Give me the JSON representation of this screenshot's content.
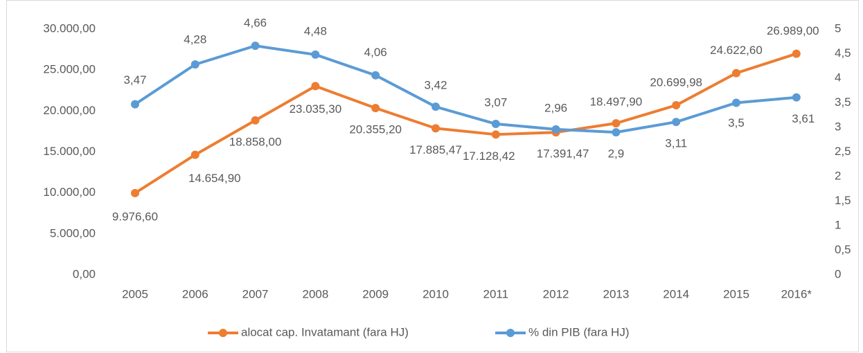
{
  "chart_data": {
    "type": "line",
    "categories": [
      "2005",
      "2006",
      "2007",
      "2008",
      "2009",
      "2010",
      "2011",
      "2012",
      "2013",
      "2014",
      "2015",
      "2016*"
    ],
    "series": [
      {
        "name": "alocat cap. Invatamant (fara HJ)",
        "color": "#ed7d31",
        "axis": "y",
        "values": [
          9976.6,
          14654.9,
          18858,
          23035.3,
          20355.2,
          17885.47,
          17128.42,
          17391.47,
          18497.9,
          20699.98,
          24622.6,
          26989
        ],
        "value_labels": [
          "9.976,60",
          "14.654,90",
          "18.858,00",
          "23.035,30",
          "20.355,20",
          "17.885,47",
          "17.128,42",
          "17.391,47",
          "18.497,90",
          "20.699,98",
          "24.622,60",
          "26.989,00"
        ]
      },
      {
        "name": "% din PIB (fara HJ)",
        "color": "#5b9bd5",
        "axis": "y2",
        "values": [
          3.47,
          4.28,
          4.66,
          4.48,
          4.06,
          3.42,
          3.07,
          2.96,
          2.9,
          3.11,
          3.5,
          3.61
        ],
        "value_labels": [
          "3,47",
          "4,28",
          "4,66",
          "4,48",
          "4,06",
          "3,42",
          "3,07",
          "2,96",
          "2,9",
          "3,11",
          "3,5",
          "3,61"
        ]
      }
    ],
    "ylim": [
      0,
      30000
    ],
    "yticks": [
      {
        "value": 0,
        "label": "0,00"
      },
      {
        "value": 5000,
        "label": "5.000,00"
      },
      {
        "value": 10000,
        "label": "10.000,00"
      },
      {
        "value": 15000,
        "label": "15.000,00"
      },
      {
        "value": 20000,
        "label": "20.000,00"
      },
      {
        "value": 25000,
        "label": "25.000,00"
      },
      {
        "value": 30000,
        "label": "30.000,00"
      }
    ],
    "y2lim": [
      0,
      5
    ],
    "y2ticks": [
      0,
      {
        "value": 0.5,
        "label": "0,5"
      },
      1,
      {
        "value": 1.5,
        "label": "1,5"
      },
      2,
      {
        "value": 2.5,
        "label": "2,5"
      },
      3,
      {
        "value": 3.5,
        "label": "3,5"
      },
      4,
      {
        "value": 4.5,
        "label": "4,5"
      },
      5
    ],
    "legend": "bottom"
  }
}
